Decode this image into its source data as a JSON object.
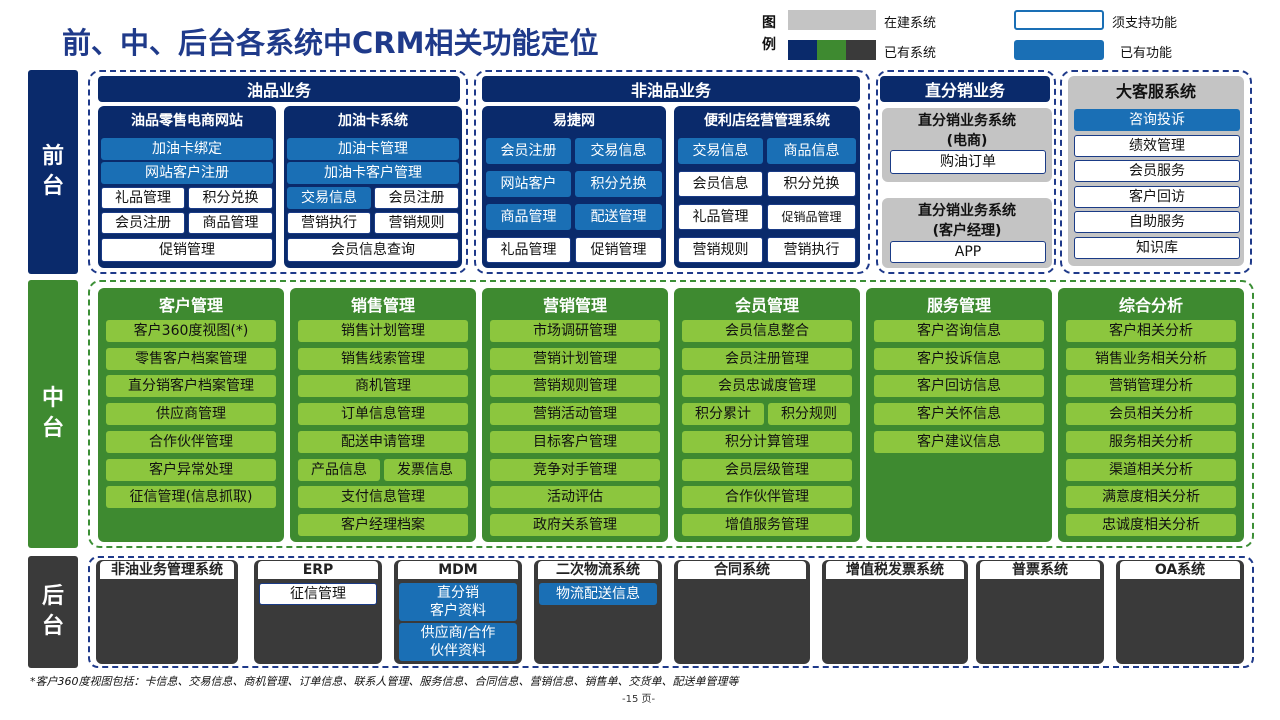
{
  "title": "前、中、后台各系统中CRM相关功能定位",
  "legend": {
    "tu": "图",
    "li": "例",
    "building": "在建系统",
    "existing": "已有系统",
    "needs_support": "须支持功能",
    "existing_function": "已有功能"
  },
  "tiers": {
    "front": "前台",
    "middle": "中台",
    "back": "后台"
  },
  "front": {
    "oil": {
      "header": "油品业务",
      "ecommerce": {
        "title": "油品零售电商网站",
        "rows": [
          "加油卡绑定",
          "网站客户注册"
        ],
        "pairs": [
          [
            "礼品管理",
            "积分兑换"
          ],
          [
            "会员注册",
            "商品管理"
          ]
        ],
        "bottom": "促销管理"
      },
      "card": {
        "title": "加油卡系统",
        "rows": [
          "加油卡管理",
          "加油卡客户管理"
        ],
        "pairs": [
          [
            "交易信息",
            "会员注册"
          ],
          [
            "营销执行",
            "营销规则"
          ]
        ],
        "bottom": "会员信息查询"
      }
    },
    "nonoil": {
      "header": "非油品业务",
      "yijie": {
        "title": "易捷网",
        "pairs": [
          [
            "会员注册",
            "交易信息"
          ],
          [
            "网站客户",
            "积分兑换"
          ],
          [
            "商品管理",
            "配送管理"
          ],
          [
            "礼品管理",
            "促销管理"
          ]
        ]
      },
      "store": {
        "title": "便利店经营管理系统",
        "pairs": [
          [
            "交易信息",
            "商品信息"
          ],
          [
            "会员信息",
            "积分兑换"
          ],
          [
            "礼品管理",
            "促销品管理"
          ],
          [
            "营销规则",
            "营销执行"
          ]
        ]
      }
    },
    "direct": {
      "header": "直分销业务",
      "ecom_title1": "直分销业务系统",
      "ecom_title2": "(电商)",
      "ecom_item": "购油订单",
      "mgr_title1": "直分销业务系统",
      "mgr_title2": "(客户经理)",
      "mgr_item": "APP"
    },
    "service": {
      "header": "大客服系统",
      "items": [
        "咨询投诉",
        "绩效管理",
        "会员服务",
        "客户回访",
        "自助服务",
        "知识库"
      ]
    }
  },
  "middle": [
    {
      "title": "客户管理",
      "items": [
        "客户360度视图(*)",
        "零售客户档案管理",
        "直分销客户档案管理",
        "供应商管理",
        "合作伙伴管理",
        "客户异常处理",
        "征信管理(信息抓取)"
      ]
    },
    {
      "title": "销售管理",
      "items": [
        "销售计划管理",
        "销售线索管理",
        "商机管理",
        "订单信息管理",
        "配送申请管理",
        [
          "产品信息",
          "发票信息"
        ],
        "支付信息管理",
        "客户经理档案"
      ]
    },
    {
      "title": "营销管理",
      "items": [
        "市场调研管理",
        "营销计划管理",
        "营销规则管理",
        "营销活动管理",
        "目标客户管理",
        "竞争对手管理",
        "活动评估",
        "政府关系管理"
      ]
    },
    {
      "title": "会员管理",
      "items": [
        "会员信息整合",
        "会员注册管理",
        "会员忠诚度管理",
        [
          "积分累计",
          "积分规则"
        ],
        "积分计算管理",
        "会员层级管理",
        "合作伙伴管理",
        "增值服务管理"
      ]
    },
    {
      "title": "服务管理",
      "items": [
        "客户咨询信息",
        "客户投诉信息",
        "客户回访信息",
        "客户关怀信息",
        "客户建议信息"
      ]
    },
    {
      "title": "综合分析",
      "items": [
        "客户相关分析",
        "销售业务相关分析",
        "营销管理分析",
        "会员相关分析",
        "服务相关分析",
        "渠道相关分析",
        "满意度相关分析",
        "忠诚度相关分析"
      ]
    }
  ],
  "back": [
    {
      "title": "非油业务管理系统",
      "items": []
    },
    {
      "title": "ERP",
      "items": [
        "征信管理"
      ]
    },
    {
      "title": "MDM",
      "items": [
        "直分销\n客户资料",
        "供应商/合作\n伙伴资料"
      ]
    },
    {
      "title": "二次物流系统",
      "items": [
        "物流配送信息"
      ]
    },
    {
      "title": "合同系统",
      "items": []
    },
    {
      "title": "增值税发票系统",
      "items": []
    },
    {
      "title": "普票系统",
      "items": []
    },
    {
      "title": "OA系统",
      "items": []
    }
  ],
  "footnote": "*客户360度视图包括：卡信息、交易信息、商机管理、订单信息、联系人管理、服务信息、合同信息、营销信息、销售单、交货单、配送单管理等",
  "page_number": "-15 页-",
  "colors": {
    "navy": "#0a2a6b",
    "blue": "#1a6fb5",
    "green_dark": "#3e8a30",
    "green_light": "#8cc63e",
    "gray": "#c4c4c4",
    "dark": "#3a3a3a"
  }
}
